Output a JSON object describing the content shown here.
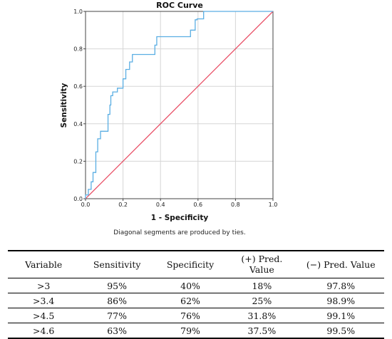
{
  "chart_data": {
    "type": "line",
    "title": "ROC Curve",
    "xlabel": "1 - Specificity",
    "ylabel": "Sensitivity",
    "xlim": [
      0,
      1
    ],
    "ylim": [
      0,
      1
    ],
    "xticks": [
      "0.0",
      "0.2",
      "0.4",
      "0.6",
      "0.8",
      "1.0"
    ],
    "yticks": [
      "0.0",
      "0.2",
      "0.4",
      "0.6",
      "0.8",
      "1.0"
    ],
    "grid": true,
    "note": "Diagonal segments are produced by ties.",
    "colors": {
      "roc": "#5aaee3",
      "reference": "#e8475f",
      "grid": "#d6d6d6"
    },
    "series": [
      {
        "x": [
          0.0,
          0.0,
          0.015,
          0.015,
          0.03,
          0.03,
          0.04,
          0.04,
          0.055,
          0.055,
          0.065,
          0.065,
          0.08,
          0.08,
          0.12,
          0.12,
          0.13,
          0.13,
          0.135,
          0.135,
          0.145,
          0.145,
          0.17,
          0.17,
          0.2,
          0.2,
          0.215,
          0.215,
          0.235,
          0.235,
          0.25,
          0.25,
          0.37,
          0.37,
          0.38,
          0.38,
          0.56,
          0.56,
          0.585,
          0.585,
          0.595,
          0.595,
          0.63,
          0.63,
          1.0
        ],
        "y": [
          0.0,
          0.02,
          0.02,
          0.05,
          0.05,
          0.09,
          0.09,
          0.14,
          0.14,
          0.25,
          0.25,
          0.32,
          0.32,
          0.36,
          0.36,
          0.45,
          0.45,
          0.5,
          0.5,
          0.55,
          0.55,
          0.57,
          0.57,
          0.59,
          0.59,
          0.64,
          0.64,
          0.69,
          0.69,
          0.73,
          0.73,
          0.77,
          0.77,
          0.82,
          0.82,
          0.865,
          0.865,
          0.9,
          0.9,
          0.955,
          0.955,
          0.96,
          0.96,
          1.0,
          1.0
        ]
      },
      {
        "x": [
          0,
          1
        ],
        "y": [
          0,
          1
        ]
      }
    ]
  },
  "table": {
    "headers": [
      "Variable",
      "Sensitivity",
      "Specificity",
      "(+) Pred. Value",
      "(−) Pred. Value"
    ],
    "rows": [
      [
        ">3",
        "95%",
        "40%",
        "18%",
        "97.8%"
      ],
      [
        ">3.4",
        "86%",
        "62%",
        "25%",
        "98.9%"
      ],
      [
        ">4.5",
        "77%",
        "76%",
        "31.8%",
        "99.1%"
      ],
      [
        ">4.6",
        "63%",
        "79%",
        "37.5%",
        "99.5%"
      ]
    ]
  }
}
